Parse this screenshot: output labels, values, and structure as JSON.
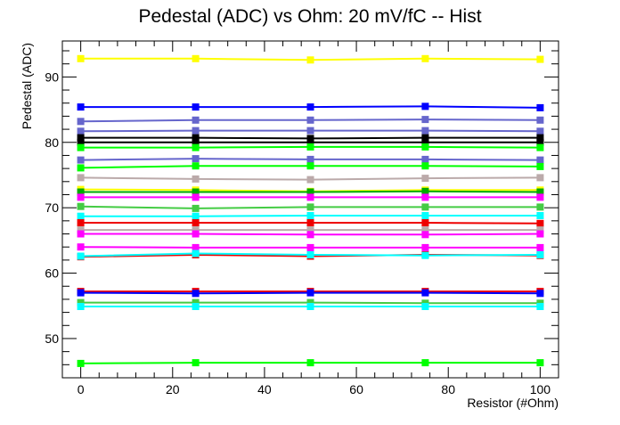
{
  "chart_data": {
    "type": "line",
    "title": "Pedestal (ADC) vs Ohm: 20 mV/fC -- Hist",
    "xlabel": "Resistor (#Ohm)",
    "ylabel": "Pedestal (ADC)",
    "xlim": [
      -4,
      104
    ],
    "ylim": [
      44,
      95.5
    ],
    "x_ticks": [
      0,
      20,
      40,
      60,
      80,
      100
    ],
    "y_ticks": [
      50,
      60,
      70,
      80,
      90
    ],
    "grid": false,
    "legend": "none",
    "x": [
      0,
      25,
      50,
      75,
      100
    ],
    "series": [
      {
        "color": "#ffff00",
        "values": [
          92.8,
          92.8,
          92.6,
          92.8,
          92.7
        ]
      },
      {
        "color": "#0000ff",
        "values": [
          85.4,
          85.4,
          85.4,
          85.5,
          85.3
        ]
      },
      {
        "color": "#6666cc",
        "values": [
          83.2,
          83.4,
          83.4,
          83.5,
          83.4
        ]
      },
      {
        "color": "#6666cc",
        "values": [
          81.7,
          81.8,
          81.8,
          81.8,
          81.7
        ]
      },
      {
        "color": "#000000",
        "values": [
          80.7,
          80.7,
          80.6,
          80.7,
          80.7
        ]
      },
      {
        "color": "#000000",
        "values": [
          80.0,
          80.0,
          80.0,
          80.0,
          80.0
        ]
      },
      {
        "color": "#00ff00",
        "values": [
          79.2,
          79.2,
          79.3,
          79.3,
          79.2
        ]
      },
      {
        "color": "#6666cc",
        "values": [
          77.3,
          77.5,
          77.4,
          77.4,
          77.3
        ]
      },
      {
        "color": "#00ff00",
        "values": [
          76.1,
          76.4,
          76.4,
          76.4,
          76.3
        ]
      },
      {
        "color": "#bbaaaa",
        "values": [
          74.6,
          74.4,
          74.3,
          74.5,
          74.6
        ]
      },
      {
        "color": "#ffff00",
        "values": [
          72.8,
          72.7,
          72.5,
          72.7,
          72.7
        ]
      },
      {
        "color": "#00aa00",
        "values": [
          72.4,
          72.4,
          72.4,
          72.5,
          72.4
        ]
      },
      {
        "color": "#ff00ff",
        "values": [
          71.6,
          71.6,
          71.6,
          71.6,
          71.6
        ]
      },
      {
        "color": "#44cc44",
        "values": [
          70.2,
          69.9,
          70.1,
          70.1,
          70.1
        ]
      },
      {
        "color": "#00ffff",
        "values": [
          68.7,
          68.7,
          68.8,
          68.8,
          68.8
        ]
      },
      {
        "color": "#ee0000",
        "values": [
          67.7,
          67.7,
          67.7,
          67.7,
          67.6
        ]
      },
      {
        "color": "#bbaaaa",
        "values": [
          66.6,
          66.6,
          66.6,
          66.6,
          66.6
        ]
      },
      {
        "color": "#ff00ff",
        "values": [
          66.0,
          66.0,
          65.9,
          65.9,
          66.0
        ]
      },
      {
        "color": "#ff00ff",
        "values": [
          64.0,
          63.9,
          63.9,
          63.9,
          63.9
        ]
      },
      {
        "color": "#ee0000",
        "values": [
          62.5,
          62.8,
          62.6,
          62.8,
          62.7
        ]
      },
      {
        "color": "#00ffff",
        "values": [
          62.6,
          63.0,
          62.8,
          62.7,
          62.8
        ]
      },
      {
        "color": "#ee0000",
        "values": [
          57.2,
          57.2,
          57.2,
          57.2,
          57.2
        ]
      },
      {
        "color": "#0000ff",
        "values": [
          57.0,
          56.9,
          57.0,
          57.0,
          56.9
        ]
      },
      {
        "color": "#44cc44",
        "values": [
          55.5,
          55.5,
          55.5,
          55.4,
          55.4
        ]
      },
      {
        "color": "#00ffff",
        "values": [
          54.9,
          54.9,
          54.9,
          54.9,
          54.9
        ]
      },
      {
        "color": "#00ff00",
        "values": [
          46.2,
          46.3,
          46.3,
          46.3,
          46.3
        ]
      }
    ]
  }
}
